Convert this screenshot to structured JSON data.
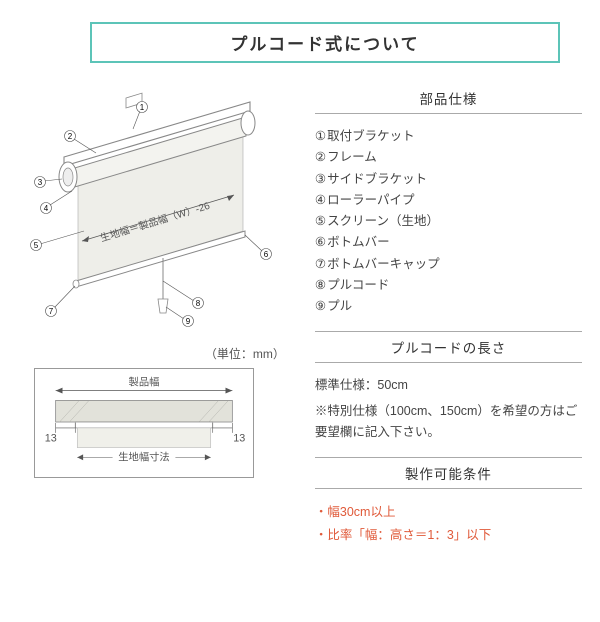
{
  "title": "プルコード式について",
  "diagram": {
    "fabric_width_label": "生地幅＝製品幅（W）-26",
    "callouts": [
      "①",
      "②",
      "③",
      "④",
      "⑤",
      "⑥",
      "⑦",
      "⑧",
      "⑨"
    ],
    "colors": {
      "outline": "#888888",
      "fill": "#ffffff",
      "shade": "#e8e8e4",
      "leader": "#555555"
    }
  },
  "unit_label": "（単位：mm）",
  "cross_section": {
    "product_width_label": "製品幅",
    "fabric_width_label": "生地幅寸法",
    "margin_left": "13",
    "margin_right": "13",
    "colors": {
      "frame": "#999",
      "fill": "#d8d8d2",
      "hatch": "#b0b0aa"
    }
  },
  "sections": {
    "parts": {
      "heading": "部品仕様",
      "items": [
        {
          "num": "①",
          "label": "取付ブラケット"
        },
        {
          "num": "②",
          "label": "フレーム"
        },
        {
          "num": "③",
          "label": "サイドブラケット"
        },
        {
          "num": "④",
          "label": "ローラーパイプ"
        },
        {
          "num": "⑤",
          "label": "スクリーン（生地）"
        },
        {
          "num": "⑥",
          "label": "ボトムバー"
        },
        {
          "num": "⑦",
          "label": "ボトムバーキャップ"
        },
        {
          "num": "⑧",
          "label": "プルコード"
        },
        {
          "num": "⑨",
          "label": "プル"
        }
      ]
    },
    "cord_length": {
      "heading": "プルコードの長さ",
      "body1": "標準仕様：50cm",
      "body2": "※特別仕様（100cm、150cm）を希望の方はご要望欄に記入下さい。"
    },
    "conditions": {
      "heading": "製作可能条件",
      "items": [
        "幅30cm以上",
        "比率「幅：高さ＝1：3」以下"
      ]
    }
  }
}
